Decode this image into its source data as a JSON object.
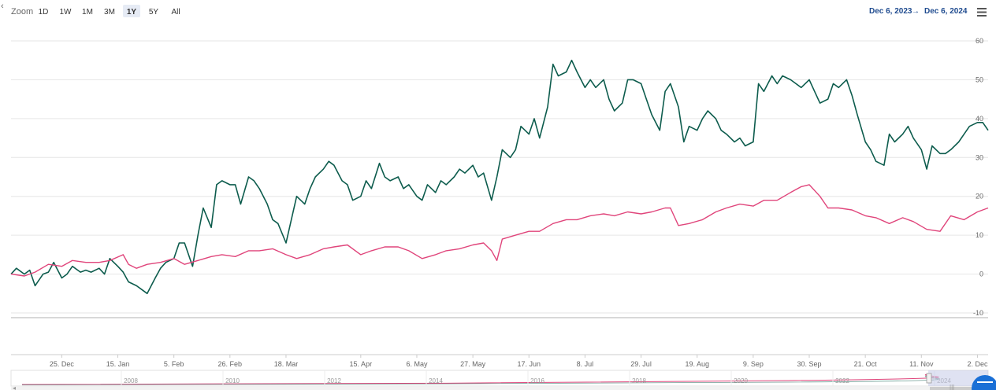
{
  "toolbar": {
    "back_glyph": "‹",
    "zoom_label": "Zoom",
    "zoom_buttons": [
      "1D",
      "1W",
      "1M",
      "3M",
      "1Y",
      "5Y",
      "All"
    ],
    "active_zoom": "1Y",
    "date_from": "Dec 6, 2023",
    "date_separator": "→",
    "date_to": "Dec 6, 2024",
    "menu_icon": "hamburger-menu-icon"
  },
  "colors": {
    "series_1": "#0d5c4d",
    "series_2": "#e0457b",
    "grid": "#e6e6e6",
    "navigator_mask": "#c5cbe8"
  },
  "navigator": {
    "year_labels": [
      "2008",
      "2010",
      "2012",
      "2014",
      "2016",
      "2018",
      "2020",
      "2022",
      "2024"
    ],
    "scrollbar_grip": "|||"
  },
  "chart_data": {
    "type": "line",
    "ylim": [
      -10,
      60
    ],
    "yticks": [
      -10,
      0,
      10,
      20,
      30,
      40,
      50,
      60
    ],
    "x_range": [
      "2023-12-06",
      "2024-12-06"
    ],
    "xtick_labels": [
      {
        "date": "2023-12-25",
        "label": "25. Dec"
      },
      {
        "date": "2024-01-15",
        "label": "15. Jan"
      },
      {
        "date": "2024-02-05",
        "label": "5. Feb"
      },
      {
        "date": "2024-02-26",
        "label": "26. Feb"
      },
      {
        "date": "2024-03-18",
        "label": "18. Mar"
      },
      {
        "date": "2024-04-15",
        "label": "15. Apr"
      },
      {
        "date": "2024-05-06",
        "label": "6. May"
      },
      {
        "date": "2024-05-27",
        "label": "27. May"
      },
      {
        "date": "2024-06-17",
        "label": "17. Jun"
      },
      {
        "date": "2024-07-08",
        "label": "8. Jul"
      },
      {
        "date": "2024-07-29",
        "label": "29. Jul"
      },
      {
        "date": "2024-08-19",
        "label": "19. Aug"
      },
      {
        "date": "2024-09-09",
        "label": "9. Sep"
      },
      {
        "date": "2024-09-30",
        "label": "30. Sep"
      },
      {
        "date": "2024-10-21",
        "label": "21. Oct"
      },
      {
        "date": "2024-11-11",
        "label": "11. Nov"
      },
      {
        "date": "2024-12-02",
        "label": "2. Dec"
      }
    ],
    "series": [
      {
        "color": "#0d5c4d",
        "points": [
          [
            "2023-12-06",
            0
          ],
          [
            "2023-12-08",
            1.5
          ],
          [
            "2023-12-11",
            0
          ],
          [
            "2023-12-13",
            1
          ],
          [
            "2023-12-15",
            -3
          ],
          [
            "2023-12-18",
            0
          ],
          [
            "2023-12-20",
            0.5
          ],
          [
            "2023-12-22",
            3
          ],
          [
            "2023-12-25",
            -1
          ],
          [
            "2023-12-27",
            0
          ],
          [
            "2023-12-29",
            2
          ],
          [
            "2024-01-01",
            0.5
          ],
          [
            "2024-01-03",
            1
          ],
          [
            "2024-01-05",
            0.5
          ],
          [
            "2024-01-08",
            1.5
          ],
          [
            "2024-01-10",
            0
          ],
          [
            "2024-01-12",
            4
          ],
          [
            "2024-01-15",
            2
          ],
          [
            "2024-01-17",
            0.5
          ],
          [
            "2024-01-19",
            -2
          ],
          [
            "2024-01-22",
            -3
          ],
          [
            "2024-01-24",
            -4
          ],
          [
            "2024-01-26",
            -5
          ],
          [
            "2024-01-29",
            -1
          ],
          [
            "2024-01-31",
            1.5
          ],
          [
            "2024-02-02",
            3
          ],
          [
            "2024-02-05",
            4
          ],
          [
            "2024-02-07",
            8
          ],
          [
            "2024-02-09",
            8
          ],
          [
            "2024-02-12",
            2
          ],
          [
            "2024-02-14",
            10
          ],
          [
            "2024-02-16",
            17
          ],
          [
            "2024-02-19",
            12
          ],
          [
            "2024-02-21",
            23
          ],
          [
            "2024-02-23",
            24
          ],
          [
            "2024-02-26",
            23
          ],
          [
            "2024-02-28",
            23
          ],
          [
            "2024-03-01",
            18
          ],
          [
            "2024-03-04",
            25
          ],
          [
            "2024-03-06",
            24
          ],
          [
            "2024-03-08",
            22
          ],
          [
            "2024-03-11",
            18
          ],
          [
            "2024-03-13",
            14
          ],
          [
            "2024-03-15",
            13
          ],
          [
            "2024-03-18",
            8
          ],
          [
            "2024-03-20",
            14
          ],
          [
            "2024-03-22",
            20
          ],
          [
            "2024-03-25",
            18
          ],
          [
            "2024-03-27",
            22
          ],
          [
            "2024-03-29",
            25
          ],
          [
            "2024-04-01",
            27
          ],
          [
            "2024-04-03",
            29
          ],
          [
            "2024-04-05",
            28
          ],
          [
            "2024-04-08",
            24
          ],
          [
            "2024-04-10",
            23
          ],
          [
            "2024-04-12",
            19
          ],
          [
            "2024-04-15",
            20
          ],
          [
            "2024-04-17",
            24
          ],
          [
            "2024-04-19",
            22
          ],
          [
            "2024-04-22",
            28.5
          ],
          [
            "2024-04-24",
            25
          ],
          [
            "2024-04-26",
            24
          ],
          [
            "2024-04-29",
            25
          ],
          [
            "2024-05-01",
            22
          ],
          [
            "2024-05-03",
            23
          ],
          [
            "2024-05-06",
            20
          ],
          [
            "2024-05-08",
            19
          ],
          [
            "2024-05-10",
            23
          ],
          [
            "2024-05-13",
            21
          ],
          [
            "2024-05-15",
            24
          ],
          [
            "2024-05-17",
            23
          ],
          [
            "2024-05-20",
            25
          ],
          [
            "2024-05-22",
            27
          ],
          [
            "2024-05-24",
            26
          ],
          [
            "2024-05-27",
            28
          ],
          [
            "2024-05-29",
            25
          ],
          [
            "2024-05-31",
            26
          ],
          [
            "2024-06-03",
            19
          ],
          [
            "2024-06-05",
            25
          ],
          [
            "2024-06-07",
            32
          ],
          [
            "2024-06-10",
            30
          ],
          [
            "2024-06-12",
            32
          ],
          [
            "2024-06-14",
            38
          ],
          [
            "2024-06-17",
            36
          ],
          [
            "2024-06-19",
            40
          ],
          [
            "2024-06-21",
            35
          ],
          [
            "2024-06-24",
            43
          ],
          [
            "2024-06-26",
            54
          ],
          [
            "2024-06-28",
            51
          ],
          [
            "2024-07-01",
            52
          ],
          [
            "2024-07-03",
            55
          ],
          [
            "2024-07-05",
            52
          ],
          [
            "2024-07-08",
            48
          ],
          [
            "2024-07-10",
            50
          ],
          [
            "2024-07-12",
            48
          ],
          [
            "2024-07-15",
            50
          ],
          [
            "2024-07-17",
            45
          ],
          [
            "2024-07-19",
            42
          ],
          [
            "2024-07-22",
            44
          ],
          [
            "2024-07-24",
            50
          ],
          [
            "2024-07-26",
            50
          ],
          [
            "2024-07-29",
            49
          ],
          [
            "2024-07-31",
            45
          ],
          [
            "2024-08-02",
            41
          ],
          [
            "2024-08-05",
            37
          ],
          [
            "2024-08-07",
            47
          ],
          [
            "2024-08-09",
            49
          ],
          [
            "2024-08-12",
            43
          ],
          [
            "2024-08-14",
            34
          ],
          [
            "2024-08-16",
            38
          ],
          [
            "2024-08-19",
            37
          ],
          [
            "2024-08-21",
            40
          ],
          [
            "2024-08-23",
            42
          ],
          [
            "2024-08-26",
            40
          ],
          [
            "2024-08-28",
            37
          ],
          [
            "2024-08-30",
            36
          ],
          [
            "2024-09-02",
            34
          ],
          [
            "2024-09-04",
            35
          ],
          [
            "2024-09-06",
            33
          ],
          [
            "2024-09-09",
            34
          ],
          [
            "2024-09-11",
            49
          ],
          [
            "2024-09-13",
            47
          ],
          [
            "2024-09-16",
            51
          ],
          [
            "2024-09-18",
            49
          ],
          [
            "2024-09-20",
            51
          ],
          [
            "2024-09-23",
            50
          ],
          [
            "2024-09-25",
            49
          ],
          [
            "2024-09-27",
            48
          ],
          [
            "2024-09-30",
            50
          ],
          [
            "2024-10-02",
            47
          ],
          [
            "2024-10-04",
            44
          ],
          [
            "2024-10-07",
            45
          ],
          [
            "2024-10-09",
            49
          ],
          [
            "2024-10-11",
            48
          ],
          [
            "2024-10-14",
            50
          ],
          [
            "2024-10-16",
            46
          ],
          [
            "2024-10-18",
            41
          ],
          [
            "2024-10-21",
            34
          ],
          [
            "2024-10-23",
            32
          ],
          [
            "2024-10-25",
            29
          ],
          [
            "2024-10-28",
            28
          ],
          [
            "2024-10-30",
            36
          ],
          [
            "2024-11-01",
            34
          ],
          [
            "2024-11-04",
            36
          ],
          [
            "2024-11-06",
            38
          ],
          [
            "2024-11-08",
            35
          ],
          [
            "2024-11-11",
            32
          ],
          [
            "2024-11-13",
            27
          ],
          [
            "2024-11-15",
            33
          ],
          [
            "2024-11-18",
            31
          ],
          [
            "2024-11-20",
            31
          ],
          [
            "2024-11-22",
            32
          ],
          [
            "2024-11-25",
            34
          ],
          [
            "2024-11-27",
            36
          ],
          [
            "2024-11-29",
            38
          ],
          [
            "2024-12-02",
            39
          ],
          [
            "2024-12-04",
            39
          ],
          [
            "2024-12-06",
            37
          ]
        ]
      },
      {
        "color": "#e0457b",
        "points": [
          [
            "2023-12-06",
            0
          ],
          [
            "2023-12-11",
            -0.5
          ],
          [
            "2023-12-15",
            0.5
          ],
          [
            "2023-12-20",
            2.5
          ],
          [
            "2023-12-25",
            2
          ],
          [
            "2023-12-29",
            3.5
          ],
          [
            "2024-01-03",
            3
          ],
          [
            "2024-01-08",
            3
          ],
          [
            "2024-01-12",
            3.5
          ],
          [
            "2024-01-17",
            5
          ],
          [
            "2024-01-19",
            2.5
          ],
          [
            "2024-01-22",
            1.5
          ],
          [
            "2024-01-26",
            2.5
          ],
          [
            "2024-01-31",
            3
          ],
          [
            "2024-02-05",
            4
          ],
          [
            "2024-02-09",
            2.5
          ],
          [
            "2024-02-14",
            3.5
          ],
          [
            "2024-02-19",
            4.5
          ],
          [
            "2024-02-23",
            5
          ],
          [
            "2024-02-28",
            4.5
          ],
          [
            "2024-03-04",
            6
          ],
          [
            "2024-03-08",
            6
          ],
          [
            "2024-03-13",
            6.5
          ],
          [
            "2024-03-18",
            5
          ],
          [
            "2024-03-22",
            4
          ],
          [
            "2024-03-27",
            5
          ],
          [
            "2024-04-01",
            6.5
          ],
          [
            "2024-04-05",
            7
          ],
          [
            "2024-04-10",
            7.5
          ],
          [
            "2024-04-15",
            5
          ],
          [
            "2024-04-19",
            6
          ],
          [
            "2024-04-24",
            7
          ],
          [
            "2024-04-29",
            7
          ],
          [
            "2024-05-03",
            6
          ],
          [
            "2024-05-08",
            4
          ],
          [
            "2024-05-13",
            5
          ],
          [
            "2024-05-17",
            6
          ],
          [
            "2024-05-22",
            6.5
          ],
          [
            "2024-05-27",
            7.5
          ],
          [
            "2024-05-31",
            8
          ],
          [
            "2024-06-03",
            6
          ],
          [
            "2024-06-05",
            3.5
          ],
          [
            "2024-06-07",
            9
          ],
          [
            "2024-06-12",
            10
          ],
          [
            "2024-06-17",
            11
          ],
          [
            "2024-06-21",
            11
          ],
          [
            "2024-06-26",
            13
          ],
          [
            "2024-07-01",
            14
          ],
          [
            "2024-07-05",
            14
          ],
          [
            "2024-07-10",
            15
          ],
          [
            "2024-07-15",
            15.5
          ],
          [
            "2024-07-19",
            15
          ],
          [
            "2024-07-24",
            16
          ],
          [
            "2024-07-29",
            15.5
          ],
          [
            "2024-08-02",
            16
          ],
          [
            "2024-08-07",
            17
          ],
          [
            "2024-08-09",
            17
          ],
          [
            "2024-08-12",
            12.5
          ],
          [
            "2024-08-16",
            13
          ],
          [
            "2024-08-21",
            14
          ],
          [
            "2024-08-26",
            16
          ],
          [
            "2024-08-30",
            17
          ],
          [
            "2024-09-04",
            18
          ],
          [
            "2024-09-09",
            17.5
          ],
          [
            "2024-09-13",
            19
          ],
          [
            "2024-09-18",
            19
          ],
          [
            "2024-09-23",
            21
          ],
          [
            "2024-09-27",
            22.5
          ],
          [
            "2024-09-30",
            23
          ],
          [
            "2024-10-04",
            20
          ],
          [
            "2024-10-07",
            17
          ],
          [
            "2024-10-11",
            17
          ],
          [
            "2024-10-16",
            16.5
          ],
          [
            "2024-10-21",
            15
          ],
          [
            "2024-10-25",
            14.5
          ],
          [
            "2024-10-30",
            13
          ],
          [
            "2024-11-04",
            14.5
          ],
          [
            "2024-11-08",
            13.5
          ],
          [
            "2024-11-13",
            11.5
          ],
          [
            "2024-11-18",
            11
          ],
          [
            "2024-11-22",
            15
          ],
          [
            "2024-11-27",
            14
          ],
          [
            "2024-12-02",
            16
          ],
          [
            "2024-12-06",
            17
          ]
        ]
      }
    ]
  }
}
